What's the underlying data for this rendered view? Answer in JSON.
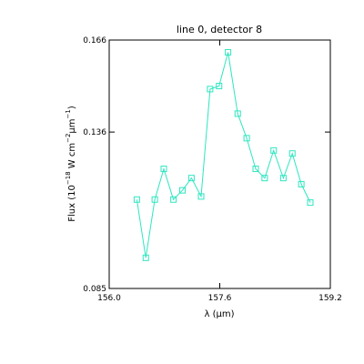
{
  "chart_data": {
    "type": "line",
    "title": "line 0, detector 8",
    "xlabel": {
      "prefix": "λ (",
      "mu": "μ",
      "suffix": "m)"
    },
    "ylabel": {
      "text1": "Flux (10",
      "sup1": "−18",
      "text2": " W cm",
      "sup2": "−2",
      "text3": "μm",
      "sup3": "−1",
      "text4": ")"
    },
    "xlim": [
      156.0,
      159.2
    ],
    "ylim": [
      0.085,
      0.166
    ],
    "xticks": [
      {
        "value": 156.0,
        "label": "156.0"
      },
      {
        "value": 157.6,
        "label": "157.6"
      },
      {
        "value": 159.2,
        "label": "159.2"
      }
    ],
    "yticks": [
      {
        "value": 0.085,
        "label": "0.085"
      },
      {
        "value": 0.136,
        "label": "0.136"
      },
      {
        "value": 0.166,
        "label": "0.166"
      }
    ],
    "grid": false,
    "marker": "square",
    "color": "#2ee6c0",
    "series": [
      {
        "x": [
          156.4,
          156.53,
          156.66,
          156.79,
          156.93,
          157.06,
          157.19,
          157.33,
          157.46,
          157.59,
          157.72,
          157.86,
          157.99,
          158.12,
          158.25,
          158.38,
          158.52,
          158.65,
          158.78,
          158.91
        ],
        "y": [
          0.114,
          0.095,
          0.114,
          0.124,
          0.114,
          0.117,
          0.121,
          0.115,
          0.15,
          0.151,
          0.162,
          0.142,
          0.134,
          0.124,
          0.121,
          0.13,
          0.121,
          0.129,
          0.119,
          0.113
        ]
      }
    ]
  }
}
